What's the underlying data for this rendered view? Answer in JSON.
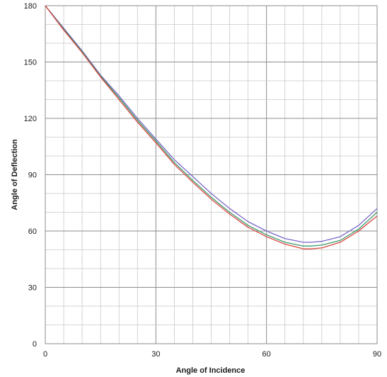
{
  "chart_data": {
    "type": "line",
    "title": "",
    "xlabel": "Angle of Incidence",
    "ylabel": "Angle of Deflection",
    "xlim": [
      0,
      90
    ],
    "ylim": [
      0,
      180
    ],
    "x_ticks": [
      "0",
      "30",
      "60",
      "90"
    ],
    "y_ticks": [
      "0",
      "30",
      "60",
      "90",
      "120",
      "150",
      "180"
    ],
    "grid": true,
    "legend": "none",
    "x": [
      0,
      5,
      10,
      15,
      20,
      25,
      30,
      35,
      40,
      45,
      50,
      55,
      60,
      65,
      70,
      72,
      75,
      80,
      85,
      90
    ],
    "series": [
      {
        "color": "#7b68c8",
        "values": [
          180,
          168,
          156,
          143,
          132,
          120,
          109,
          98,
          89,
          80,
          72,
          65,
          60,
          56,
          54,
          54,
          54.5,
          57,
          63,
          72
        ]
      },
      {
        "color": "#3a9a6a",
        "values": [
          180,
          167.5,
          155.5,
          142.5,
          131,
          119,
          108,
          96.5,
          87,
          78,
          70,
          63,
          58,
          54,
          52,
          52,
          52.5,
          55,
          61,
          70
        ]
      },
      {
        "color": "#d9463f",
        "values": [
          180,
          167,
          155,
          142,
          130,
          118,
          107,
          95.5,
          86,
          77,
          69,
          62,
          57,
          53,
          50.5,
          50.5,
          51,
          54,
          60,
          68
        ]
      }
    ]
  }
}
